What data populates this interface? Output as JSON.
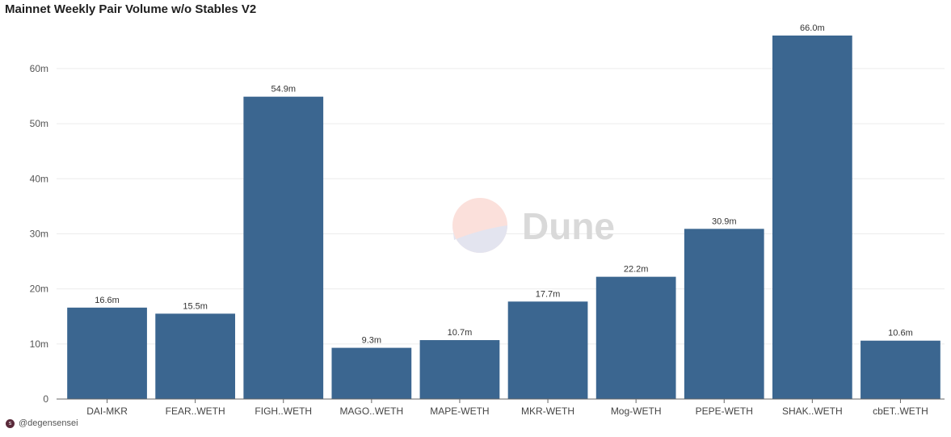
{
  "chart_data": {
    "type": "bar",
    "title": "Mainnet Weekly Pair Volume w/o Stables V2",
    "categories": [
      "DAI-MKR",
      "FEAR..WETH",
      "FIGH..WETH",
      "MAGO..WETH",
      "MAPE-WETH",
      "MKR-WETH",
      "Mog-WETH",
      "PEPE-WETH",
      "SHAK..WETH",
      "cbET..WETH"
    ],
    "values": [
      16.6,
      15.5,
      54.9,
      9.3,
      10.7,
      17.7,
      22.2,
      30.9,
      66.0,
      10.6
    ],
    "value_labels": [
      "16.6m",
      "15.5m",
      "54.9m",
      "9.3m",
      "10.7m",
      "17.7m",
      "22.2m",
      "30.9m",
      "66.0m",
      "10.6m"
    ],
    "ylim": [
      0,
      66
    ],
    "yticks": [
      0,
      10,
      20,
      30,
      40,
      50,
      60
    ],
    "ytick_labels": [
      "0",
      "10m",
      "20m",
      "30m",
      "40m",
      "50m",
      "60m"
    ],
    "xlabel": "",
    "ylabel": "",
    "grid": true,
    "bar_color": "#3b6690"
  },
  "watermark": {
    "text": "Dune"
  },
  "footer": {
    "avatar_letter": "s",
    "author": "@degensensei"
  }
}
